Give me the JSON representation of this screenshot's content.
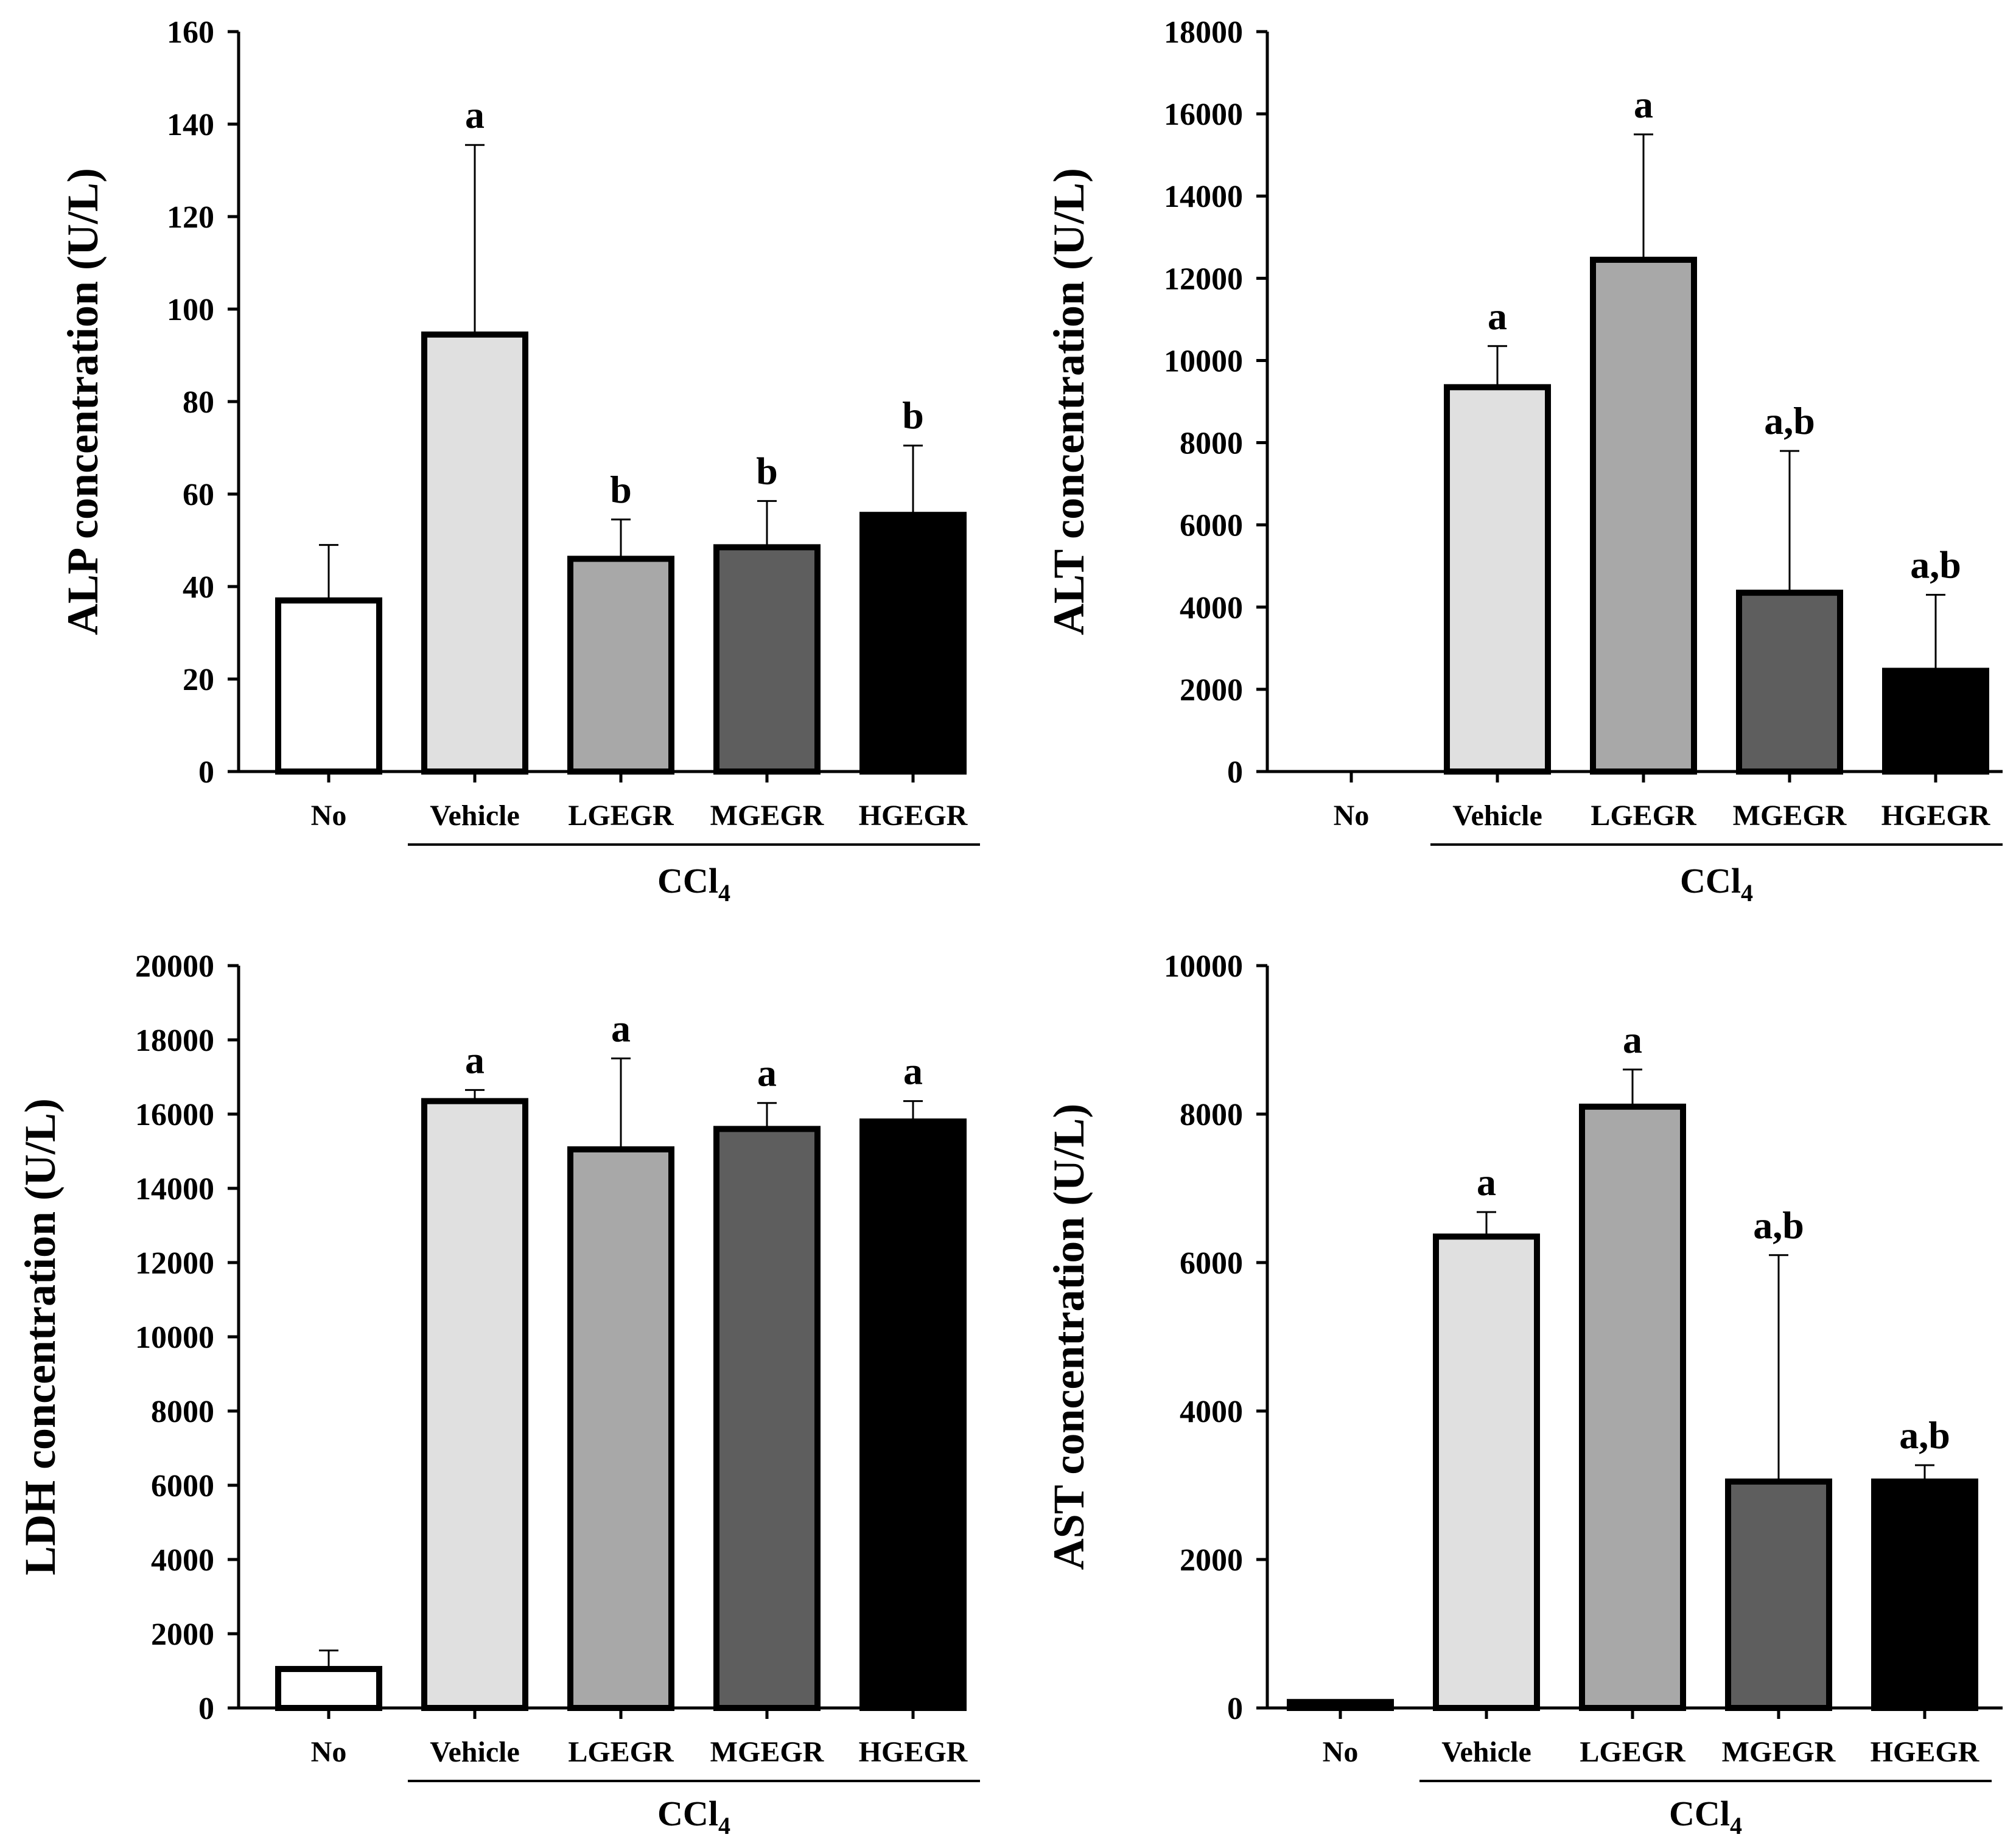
{
  "chart_data": [
    {
      "type": "bar",
      "ylabel": "ALP concentration (U/L)",
      "ylim": [
        0,
        160
      ],
      "yticks": [
        0,
        20,
        40,
        60,
        80,
        100,
        120,
        140,
        160
      ],
      "ytick_labels": [
        "0",
        "20",
        "40",
        "60",
        "80",
        "100",
        "120",
        "140",
        "160"
      ],
      "categories": [
        "No",
        "Vehicle",
        "LGEGR",
        "MGEGR",
        "HGEGR"
      ],
      "values": [
        37,
        94.5,
        46,
        48.5,
        55.5
      ],
      "errors": [
        12,
        41,
        8.5,
        10,
        15
      ],
      "significance": [
        "",
        "a",
        "b",
        "b",
        "b"
      ],
      "bar_colors": [
        "#ffffff",
        "#e0e0e0",
        "#a8a8a8",
        "#5e5e5e",
        "#000000"
      ],
      "group_label": {
        "text": "CCl",
        "subscript": "4"
      }
    },
    {
      "type": "bar",
      "ylabel": "ALT concentration (U/L)",
      "ylim": [
        0,
        18000
      ],
      "yticks": [
        0,
        2000,
        4000,
        6000,
        8000,
        10000,
        12000,
        14000,
        16000,
        18000
      ],
      "ytick_labels": [
        "0",
        "2000",
        "4000",
        "6000",
        "8000",
        "10000",
        "12000",
        "14000",
        "16000",
        "18000"
      ],
      "categories": [
        "No",
        "Vehicle",
        "LGEGR",
        "MGEGR",
        "HGEGR"
      ],
      "values": [
        0,
        9350,
        12450,
        4350,
        2450
      ],
      "errors": [
        0,
        1000,
        3050,
        3450,
        1850
      ],
      "significance": [
        "",
        "a",
        "a",
        "a,b",
        "a,b"
      ],
      "bar_colors": [
        "#ffffff",
        "#e0e0e0",
        "#a8a8a8",
        "#5e5e5e",
        "#000000"
      ],
      "group_label": {
        "text": "CCl",
        "subscript": "4"
      }
    },
    {
      "type": "bar",
      "ylabel": "LDH concentration (U/L)",
      "ylim": [
        0,
        20000
      ],
      "yticks": [
        0,
        2000,
        4000,
        6000,
        8000,
        10000,
        12000,
        14000,
        16000,
        18000,
        20000
      ],
      "ytick_labels": [
        "0",
        "2000",
        "4000",
        "6000",
        "8000",
        "10000",
        "12000",
        "14000",
        "16000",
        "18000",
        "20000"
      ],
      "categories": [
        "No",
        "Vehicle",
        "LGEGR",
        "MGEGR",
        "HGEGR"
      ],
      "values": [
        1050,
        16350,
        15050,
        15600,
        15800
      ],
      "errors": [
        500,
        300,
        2450,
        700,
        550
      ],
      "significance": [
        "",
        "a",
        "a",
        "a",
        "a"
      ],
      "bar_colors": [
        "#ffffff",
        "#e0e0e0",
        "#a8a8a8",
        "#5e5e5e",
        "#000000"
      ],
      "group_label": {
        "text": "CCl",
        "subscript": "4"
      }
    },
    {
      "type": "bar",
      "ylabel": "AST concentration (U/L)",
      "ylim": [
        0,
        10000
      ],
      "yticks": [
        0,
        2000,
        4000,
        6000,
        8000,
        10000
      ],
      "ytick_labels": [
        "0",
        "2000",
        "4000",
        "6000",
        "8000",
        "10000"
      ],
      "categories": [
        "No",
        "Vehicle",
        "LGEGR",
        "MGEGR",
        "HGEGR"
      ],
      "values": [
        80,
        6350,
        8100,
        3050,
        3050
      ],
      "errors": [
        0,
        330,
        500,
        3050,
        220
      ],
      "significance": [
        "",
        "a",
        "a",
        "a,b",
        "a,b"
      ],
      "bar_colors": [
        "#ffffff",
        "#e0e0e0",
        "#a8a8a8",
        "#5e5e5e",
        "#000000"
      ],
      "group_label": {
        "text": "CCl",
        "subscript": "4"
      }
    }
  ]
}
